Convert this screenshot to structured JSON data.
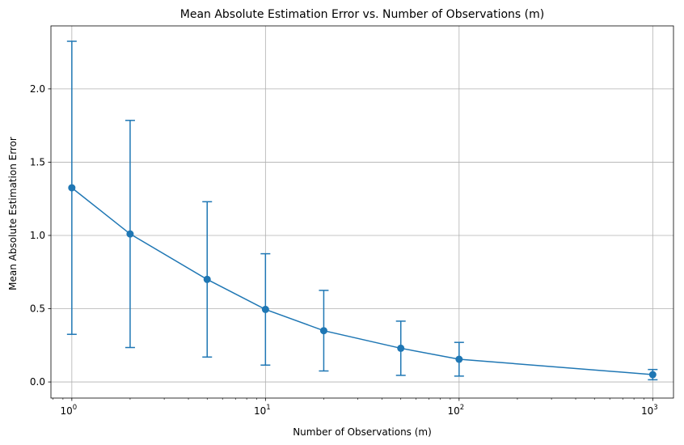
{
  "chart_data": {
    "type": "line",
    "title": "Mean Absolute Estimation Error vs. Number of Observations (m)",
    "xlabel": "Number of Observations (m)",
    "ylabel": "Mean Absolute Estimation Error",
    "xscale": "log",
    "xlim": [
      0.78,
      1280
    ],
    "ylim": [
      -0.11,
      2.43
    ],
    "grid": true,
    "x_ticks": [
      {
        "base": "10",
        "exp": "0",
        "value": 1
      },
      {
        "base": "10",
        "exp": "1",
        "value": 10
      },
      {
        "base": "10",
        "exp": "2",
        "value": 100
      },
      {
        "base": "10",
        "exp": "3",
        "value": 1000
      }
    ],
    "y_ticks": [
      {
        "label": "0.0",
        "value": 0.0
      },
      {
        "label": "0.5",
        "value": 0.5
      },
      {
        "label": "1.0",
        "value": 1.0
      },
      {
        "label": "1.5",
        "value": 1.5
      },
      {
        "label": "2.0",
        "value": 2.0
      }
    ],
    "series": [
      {
        "x": [
          1,
          2,
          5,
          10,
          20,
          50,
          100,
          1000
        ],
        "y": [
          1.325,
          1.01,
          0.7,
          0.495,
          0.35,
          0.23,
          0.155,
          0.05
        ],
        "yerr": [
          1.0,
          0.775,
          0.53,
          0.38,
          0.275,
          0.185,
          0.115,
          0.035
        ]
      }
    ],
    "colors": {
      "series": "#1f77b4",
      "grid": "#b0b0b0"
    }
  }
}
